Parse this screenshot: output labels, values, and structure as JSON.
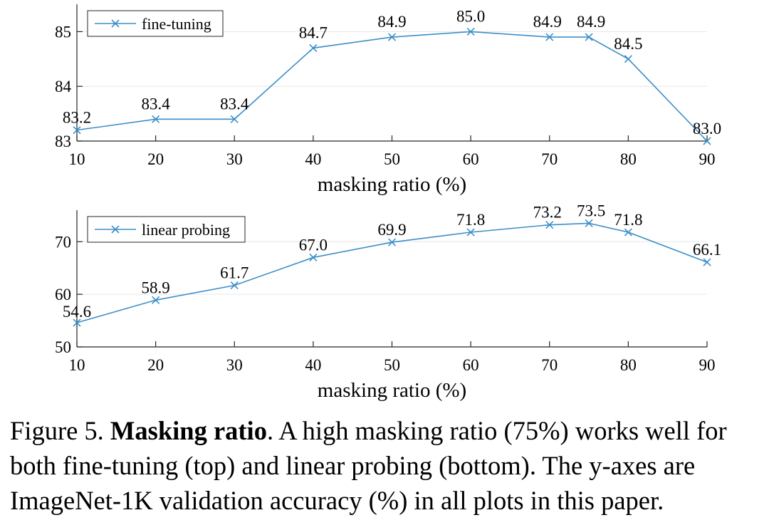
{
  "chart_data": [
    {
      "type": "line",
      "x": [
        10,
        20,
        30,
        40,
        50,
        60,
        70,
        75,
        80,
        90
      ],
      "xticks": [
        10,
        20,
        30,
        40,
        50,
        60,
        70,
        80,
        90
      ],
      "xlim": [
        10,
        90
      ],
      "yticks": [
        83,
        84,
        85
      ],
      "ylim": [
        83,
        85.5
      ],
      "xlabel": "masking ratio (%)",
      "ylabel": "",
      "grid": "horizontal",
      "legend_position": "top-left",
      "series": [
        {
          "name": "fine-tuning",
          "marker": "x",
          "color": "#3b8fc9",
          "values": [
            83.2,
            83.4,
            83.4,
            84.7,
            84.9,
            85.0,
            84.9,
            84.9,
            84.5,
            83.0
          ],
          "labels": [
            "83.2",
            "83.4",
            "83.4",
            "84.7",
            "84.9",
            "85.0",
            "84.9",
            "84.9",
            "84.5",
            "83.0"
          ]
        }
      ]
    },
    {
      "type": "line",
      "x": [
        10,
        20,
        30,
        40,
        50,
        60,
        70,
        75,
        80,
        90
      ],
      "xticks": [
        10,
        20,
        30,
        40,
        50,
        60,
        70,
        80,
        90
      ],
      "xlim": [
        10,
        90
      ],
      "yticks": [
        50,
        60,
        70
      ],
      "ylim": [
        50,
        76
      ],
      "xlabel": "masking ratio (%)",
      "ylabel": "",
      "grid": "horizontal",
      "legend_position": "top-left",
      "series": [
        {
          "name": "linear probing",
          "marker": "x",
          "color": "#3b8fc9",
          "values": [
            54.6,
            58.9,
            61.7,
            67.0,
            69.9,
            71.8,
            73.2,
            73.5,
            71.8,
            66.1
          ],
          "labels": [
            "54.6",
            "58.9",
            "61.7",
            "67.0",
            "69.9",
            "71.8",
            "73.2",
            "73.5",
            "71.8",
            "66.1"
          ]
        }
      ]
    }
  ],
  "caption": {
    "prefix": "Figure 5. ",
    "bold": "Masking ratio",
    "text": ". A high masking ratio (75%) works well for both fine-tuning (top) and linear probing (bottom). The y-axes are ImageNet-1K validation accuracy (%) in all plots in this paper."
  }
}
